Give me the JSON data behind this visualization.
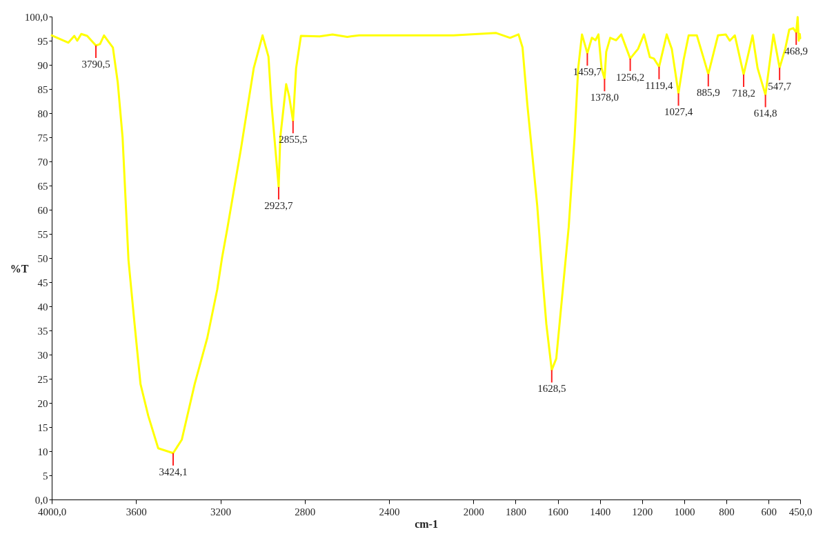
{
  "chart_data": {
    "type": "line",
    "xlabel": "cm-1",
    "ylabel": "%T",
    "xlim": [
      4000,
      450
    ],
    "ylim": [
      0,
      100
    ],
    "xticks": [
      {
        "value": 4000,
        "label": "4000,0"
      },
      3600,
      3200,
      2800,
      2400,
      2000,
      1800,
      1600,
      1400,
      1200,
      1000,
      800,
      600,
      {
        "value": 450,
        "label": "450,0"
      }
    ],
    "yticks": [
      {
        "value": 0,
        "label": "0,0"
      },
      5,
      10,
      15,
      20,
      25,
      30,
      35,
      40,
      45,
      50,
      55,
      60,
      65,
      70,
      75,
      80,
      85,
      90,
      95,
      {
        "value": 100,
        "label": "100,0"
      }
    ],
    "grid": false,
    "legend": false,
    "series": [
      {
        "color": "#ffff00",
        "x": [
          4000,
          3921,
          3893,
          3879,
          3860,
          3832,
          3790.5,
          3771,
          3752,
          3729,
          3710,
          3687,
          3664,
          3636,
          3607,
          3579,
          3542,
          3495,
          3424.1,
          3383,
          3322,
          3262,
          3215,
          3192,
          3168,
          3103,
          3042,
          3000,
          2972,
          2958,
          2923.7,
          2916,
          2888,
          2874,
          2855.5,
          2841,
          2818,
          2729,
          2668,
          2598,
          2542,
          2402,
          2094,
          1892,
          1826,
          1786,
          1767,
          1744,
          1720,
          1697,
          1673,
          1654,
          1628.5,
          1607,
          1579,
          1548,
          1520,
          1503,
          1485,
          1459.7,
          1438,
          1421,
          1407,
          1392,
          1378,
          1370,
          1351,
          1323,
          1299,
          1256.2,
          1219,
          1191,
          1163,
          1144,
          1119.4,
          1083,
          1059,
          1027.4,
          1003,
          979,
          940,
          885.9,
          840,
          803,
          784,
          760,
          718.2,
          676,
          652,
          614.8,
          577,
          547.7,
          521,
          502,
          483,
          468.9,
          462,
          457,
          452,
          450
        ],
        "values": [
          96.1,
          94.6,
          96.0,
          95.0,
          96.4,
          96.0,
          94.0,
          94.3,
          96.1,
          94.7,
          93.6,
          86.4,
          75.0,
          49.6,
          36.3,
          23.9,
          17.3,
          10.6,
          9.6,
          12.4,
          23.9,
          33.5,
          43.5,
          50.1,
          55.9,
          72.5,
          89.3,
          96.1,
          91.7,
          82.1,
          64.7,
          75.0,
          86.0,
          83.5,
          78.4,
          89.3,
          96.0,
          95.9,
          96.3,
          95.8,
          96.1,
          96.1,
          96.1,
          96.6,
          95.6,
          96.3,
          93.6,
          81.7,
          71.1,
          60.7,
          46.4,
          36.3,
          26.8,
          29.2,
          42.1,
          56.4,
          75.0,
          89.3,
          96.3,
          92.4,
          95.6,
          95.1,
          96.3,
          89.3,
          87.1,
          92.7,
          95.6,
          95.1,
          96.3,
          91.3,
          93.3,
          96.3,
          91.6,
          91.3,
          89.6,
          96.3,
          93.3,
          84.1,
          91.0,
          96.1,
          96.1,
          88.1,
          96.1,
          96.3,
          95.0,
          96.1,
          88.0,
          96.1,
          89.3,
          83.8,
          96.3,
          89.4,
          93.3,
          97.3,
          97.6,
          96.7,
          99.9,
          95.0,
          96.4,
          95.5
        ]
      }
    ],
    "annotations": [
      {
        "text": "3790,5",
        "x": 3790.5,
        "y": 94.0
      },
      {
        "text": "3424,1",
        "x": 3424.1,
        "y": 9.6
      },
      {
        "text": "2923,7",
        "x": 2923.7,
        "y": 64.7
      },
      {
        "text": "2855,5",
        "x": 2855.5,
        "y": 78.4
      },
      {
        "text": "1628,5",
        "x": 1628.5,
        "y": 26.8
      },
      {
        "text": "1459,7",
        "x": 1459.7,
        "y": 92.4
      },
      {
        "text": "1378,0",
        "x": 1378,
        "y": 87.1
      },
      {
        "text": "1256,2",
        "x": 1256.2,
        "y": 91.3
      },
      {
        "text": "1119,4",
        "x": 1119.4,
        "y": 89.6
      },
      {
        "text": "1027,4",
        "x": 1027.4,
        "y": 84.1
      },
      {
        "text": "885,9",
        "x": 885.9,
        "y": 88.1
      },
      {
        "text": "718,2",
        "x": 718.2,
        "y": 88.0
      },
      {
        "text": "614,8",
        "x": 614.8,
        "y": 83.8
      },
      {
        "text": "547,7",
        "x": 547.7,
        "y": 89.4
      },
      {
        "text": "468,9",
        "x": 468.9,
        "y": 96.7
      }
    ]
  }
}
